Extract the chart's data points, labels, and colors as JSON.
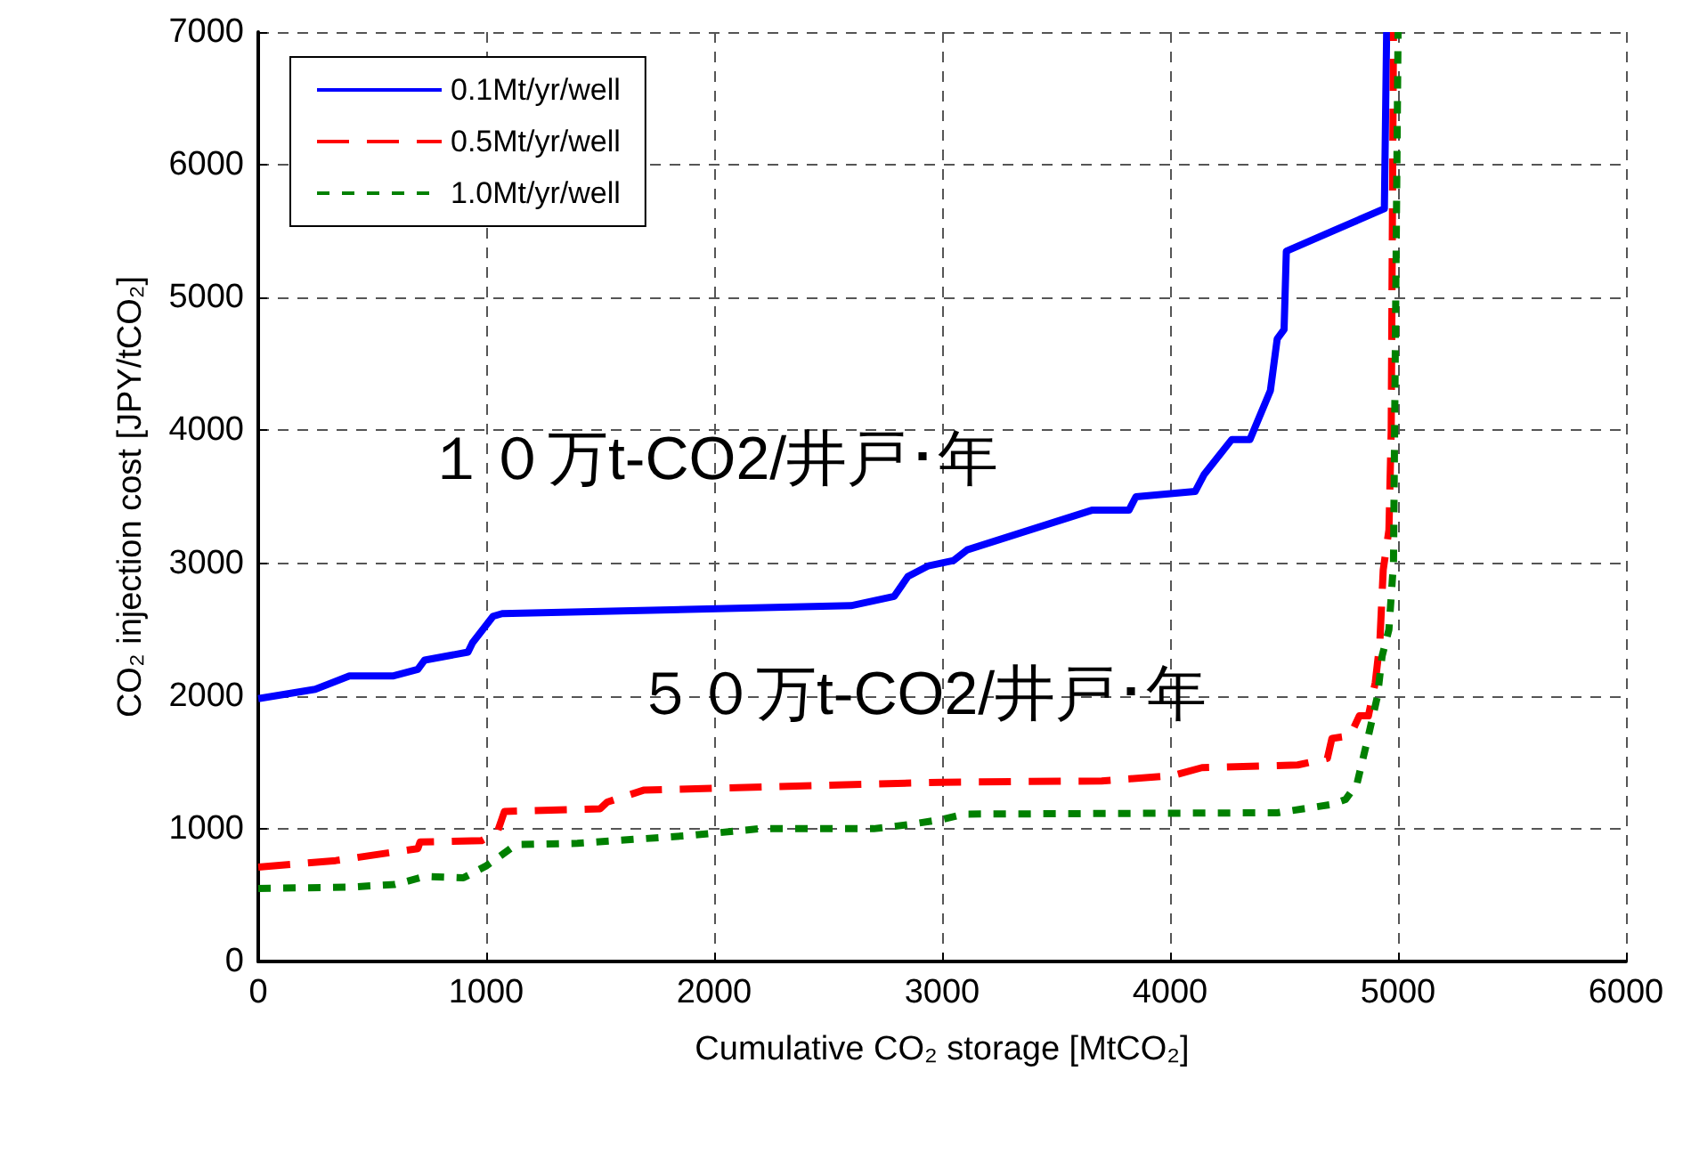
{
  "chart_data": {
    "type": "line",
    "xlabel": "Cumulative CO₂ storage [MtCO₂]",
    "ylabel": "CO₂ injection cost [JPY/tCO₂]",
    "xlim": [
      0,
      6000
    ],
    "xticks": [
      0,
      1000,
      2000,
      3000,
      4000,
      5000,
      6000
    ],
    "ylim": [
      0,
      7000
    ],
    "yticks": [
      0,
      1000,
      2000,
      3000,
      4000,
      5000,
      6000,
      7000
    ],
    "grid": true,
    "legend": "top left",
    "marker": "none",
    "series": [
      {
        "name": "0.1Mt/yr/well",
        "color": "#0000ff",
        "line_style": "solid",
        "x": [
          0,
          250,
          400,
          590,
          700,
          730,
          920,
          940,
          1030,
          1070,
          2600,
          2790,
          2850,
          2940,
          3050,
          3110,
          3660,
          3820,
          3850,
          4110,
          4150,
          4270,
          4350,
          4440,
          4470,
          4500,
          4510,
          4940,
          4950
        ],
        "values": [
          1980,
          2050,
          2150,
          2150,
          2200,
          2270,
          2330,
          2400,
          2600,
          2620,
          2680,
          2750,
          2900,
          2980,
          3020,
          3100,
          3400,
          3400,
          3500,
          3540,
          3670,
          3930,
          3930,
          4300,
          4690,
          4760,
          5350,
          5670,
          7000
        ]
      },
      {
        "name": "0.5Mt/yr/well",
        "color": "#ff0000",
        "line_style": "dashed",
        "x": [
          0,
          340,
          700,
          710,
          980,
          1050,
          1080,
          1500,
          1530,
          1690,
          3000,
          3700,
          4010,
          4140,
          4560,
          4690,
          4710,
          4790,
          4830,
          4870,
          4900,
          4920,
          4935,
          4960,
          4970,
          4980
        ],
        "values": [
          710,
          760,
          850,
          900,
          910,
          980,
          1130,
          1150,
          1200,
          1290,
          1350,
          1360,
          1400,
          1460,
          1480,
          1530,
          1680,
          1700,
          1850,
          1850,
          2100,
          2400,
          2950,
          3250,
          4000,
          7000
        ]
      },
      {
        "name": "1.0Mt/yr/well",
        "color": "#008000",
        "line_style": "dotted",
        "x": [
          0,
          400,
          600,
          730,
          900,
          1000,
          1050,
          1130,
          1400,
          1900,
          2200,
          2700,
          2850,
          3000,
          3100,
          4470,
          4700,
          4770,
          4820,
          4870,
          4910,
          4930,
          4960,
          4980,
          4990,
          5000
        ],
        "values": [
          550,
          560,
          580,
          640,
          630,
          720,
          780,
          880,
          890,
          950,
          1000,
          1000,
          1030,
          1070,
          1110,
          1120,
          1180,
          1220,
          1340,
          1700,
          2000,
          2300,
          2500,
          3000,
          5000,
          7000
        ]
      }
    ],
    "annotations": [
      "１０万t-CO2/井戸･年",
      "５０万t-CO2/井戸･年"
    ]
  }
}
